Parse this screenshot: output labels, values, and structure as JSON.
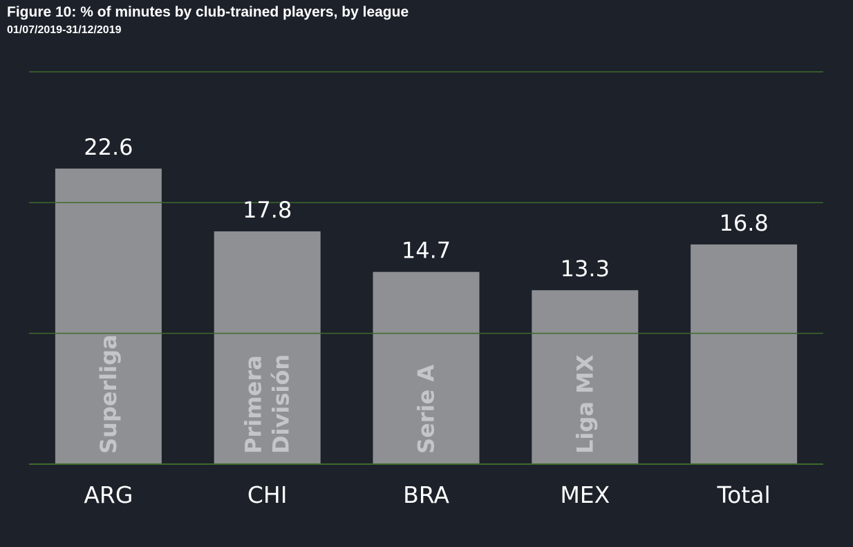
{
  "figure": {
    "title": "Figure 10: % of minutes by club-trained players, by league",
    "subtitle": "01/07/2019-31/12/2019"
  },
  "colors": {
    "background": "#1c212a",
    "bar": "#8e9094",
    "grid": "#3f6a2b",
    "text": "#ffffff",
    "inner_label": "#c4c5c8"
  },
  "chart_data": {
    "type": "bar",
    "title": "Figure 10: % of minutes by club-trained players, by league",
    "subtitle": "01/07/2019-31/12/2019",
    "categories": [
      "ARG",
      "CHI",
      "BRA",
      "MEX",
      "Total"
    ],
    "bar_labels": [
      [
        "Superliga"
      ],
      [
        "Primera",
        "División"
      ],
      [
        "Serie A"
      ],
      [
        "Liga MX"
      ],
      []
    ],
    "series": [
      {
        "values": [
          22.6,
          17.8,
          14.7,
          13.3,
          16.8
        ]
      }
    ],
    "data_labels": [
      "22.6",
      "17.8",
      "14.7",
      "13.3",
      "16.8"
    ],
    "xlabel": "",
    "ylabel": "",
    "ylim": [
      0,
      30
    ],
    "grid_values": [
      0,
      10,
      20,
      30
    ],
    "grid": true,
    "legend": "none"
  }
}
